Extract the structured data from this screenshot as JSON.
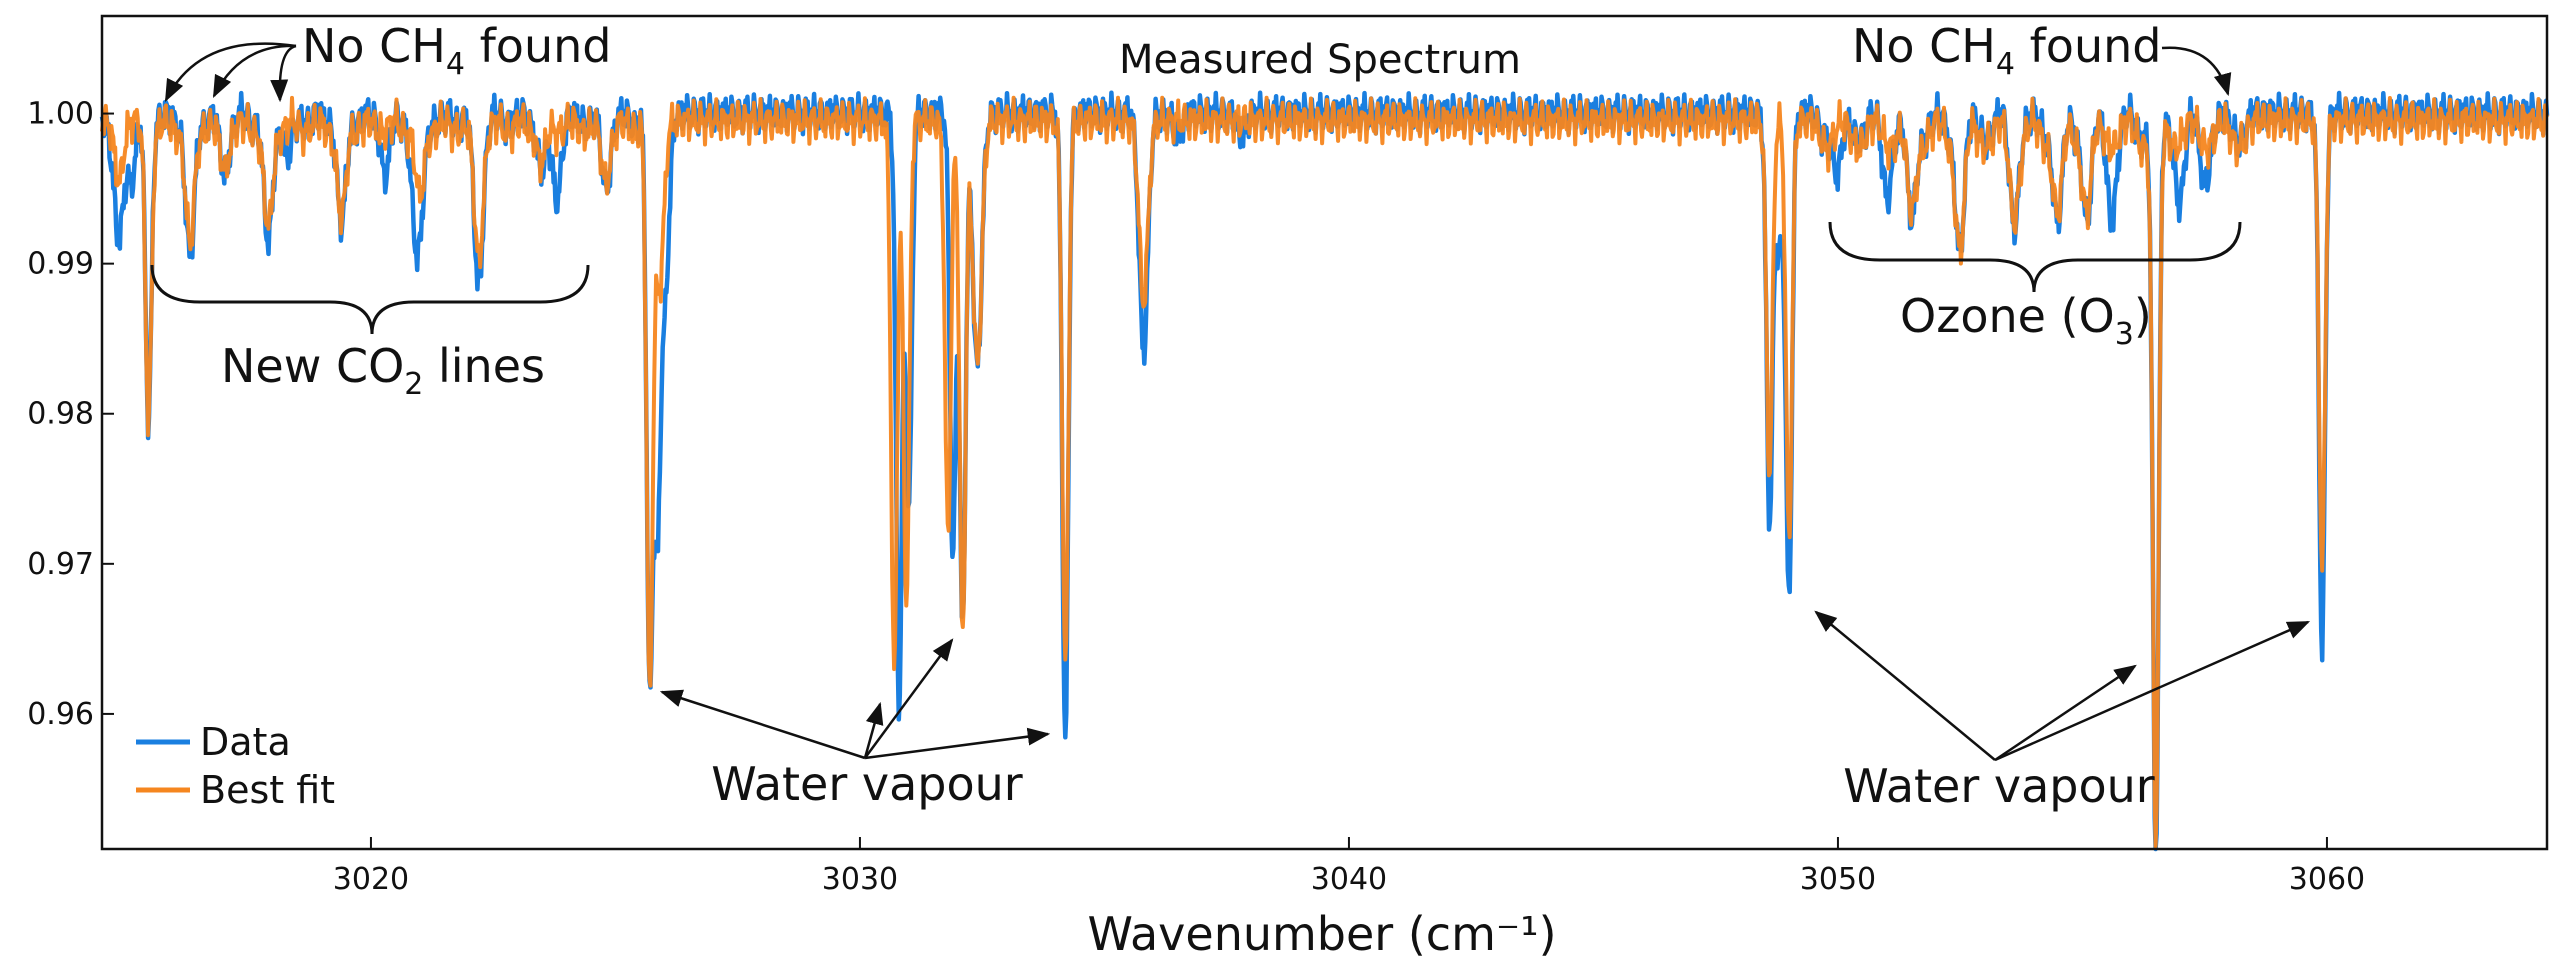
{
  "chart_data": {
    "type": "line",
    "title": "Measured Spectrum",
    "xlabel": "Wavenumber (cm⁻¹)",
    "ylabel": "",
    "xlim": [
      3014.5,
      3064.5
    ],
    "ylim": [
      0.951,
      1.0065
    ],
    "xticks": [
      3020,
      3030,
      3040,
      3050,
      3060
    ],
    "yticks": [
      0.96,
      0.97,
      0.98,
      0.99,
      1.0
    ],
    "ytick_labels": [
      "0.96",
      "0.97",
      "0.98",
      "0.99",
      "1.00"
    ],
    "grid": false,
    "legend_position": "bottom-left",
    "series": [
      {
        "name": "Data",
        "color": "#1a7fe0",
        "baseline": 1.0,
        "lines": [
          [
            3014.7,
            0.9985
          ],
          [
            3014.85,
            0.992
          ],
          [
            3015.1,
            0.9955
          ],
          [
            3015.45,
            0.9795
          ],
          [
            3016.3,
            0.9905
          ],
          [
            3017.0,
            0.9965
          ],
          [
            3017.9,
            0.9915
          ],
          [
            3018.3,
            0.9975
          ],
          [
            3019.4,
            0.9928
          ],
          [
            3020.3,
            0.9965
          ],
          [
            3020.9,
            0.995
          ],
          [
            3021.0,
            0.994
          ],
          [
            3022.2,
            0.989
          ],
          [
            3023.5,
            0.9965
          ],
          [
            3023.8,
            0.995
          ],
          [
            3024.8,
            0.9955
          ],
          [
            3025.7,
            0.962
          ],
          [
            3025.85,
            0.975
          ],
          [
            3026.0,
            0.987
          ],
          [
            3030.8,
            0.9605
          ],
          [
            3031.0,
            0.9735
          ],
          [
            3031.9,
            0.9705
          ],
          [
            3032.1,
            0.9655
          ],
          [
            3032.4,
            0.983
          ],
          [
            3034.2,
            0.958
          ],
          [
            3035.8,
            0.9843
          ],
          [
            3036.5,
            0.9985
          ],
          [
            3037.8,
            0.9985
          ],
          [
            3048.6,
            0.9735
          ],
          [
            3048.8,
            0.991
          ],
          [
            3049.0,
            0.968
          ],
          [
            3050.0,
            0.9965
          ],
          [
            3051.0,
            0.996
          ],
          [
            3051.5,
            0.9935
          ],
          [
            3052.5,
            0.992
          ],
          [
            3053.6,
            0.9942
          ],
          [
            3054.5,
            0.9935
          ],
          [
            3055.1,
            0.994
          ],
          [
            3055.6,
            0.9945
          ],
          [
            3056.5,
            0.9508
          ],
          [
            3057.0,
            0.9955
          ],
          [
            3057.5,
            0.997
          ],
          [
            3059.9,
            0.9642
          ]
        ]
      },
      {
        "name": "Best fit",
        "color": "#f5861f",
        "baseline": 0.9995,
        "lines": [
          [
            3014.85,
            0.9955
          ],
          [
            3015.45,
            0.9795
          ],
          [
            3016.3,
            0.9915
          ],
          [
            3017.0,
            0.9968
          ],
          [
            3017.9,
            0.9925
          ],
          [
            3019.4,
            0.9932
          ],
          [
            3021.0,
            0.9945
          ],
          [
            3022.2,
            0.9908
          ],
          [
            3023.5,
            0.997
          ],
          [
            3024.8,
            0.996
          ],
          [
            3025.7,
            0.9618
          ],
          [
            3025.9,
            0.9885
          ],
          [
            3030.7,
            0.9625
          ],
          [
            3030.95,
            0.9675
          ],
          [
            3031.8,
            0.972
          ],
          [
            3032.1,
            0.965
          ],
          [
            3032.4,
            0.9833
          ],
          [
            3034.2,
            0.963
          ],
          [
            3035.8,
            0.9875
          ],
          [
            3048.6,
            0.976
          ],
          [
            3049.0,
            0.9715
          ],
          [
            3051.5,
            0.994
          ],
          [
            3052.5,
            0.992
          ],
          [
            3053.6,
            0.9945
          ],
          [
            3054.5,
            0.994
          ],
          [
            3055.1,
            0.9945
          ],
          [
            3056.5,
            0.952
          ],
          [
            3059.9,
            0.9695
          ]
        ]
      }
    ],
    "annotations": [
      {
        "id": "co2",
        "text": "New CO",
        "sub": "2",
        "tail": " lines"
      },
      {
        "id": "ch4-left",
        "text": "No CH",
        "sub": "4",
        "tail": " found"
      },
      {
        "id": "ch4-right",
        "text": "No CH",
        "sub": "4",
        "tail": " found"
      },
      {
        "id": "ozone",
        "text": "Ozone (O",
        "sub": "3",
        "tail": ")"
      },
      {
        "id": "water-left",
        "text": "Water vapour"
      },
      {
        "id": "water-right",
        "text": "Water vapour"
      }
    ]
  }
}
